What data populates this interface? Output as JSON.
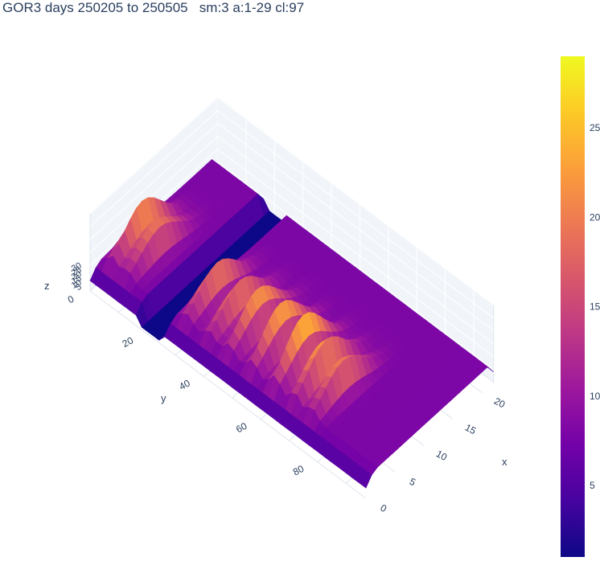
{
  "chart_data": {
    "type": "surface",
    "title": "GOR3 days 250205 to 250505   sm:3 a:1-29 cl:97",
    "colorscale": "plasma",
    "colorscale_stops": [
      "#0d0887",
      "#46039f",
      "#7201a8",
      "#9c179e",
      "#bd3786",
      "#d8576b",
      "#ed7953",
      "#fb9f3a",
      "#fdca26",
      "#f0f921"
    ],
    "xaxis": {
      "label": "x",
      "range": [
        0,
        22
      ],
      "ticks": [
        0,
        5,
        10,
        15,
        20
      ]
    },
    "yaxis": {
      "label": "y",
      "range": [
        0,
        97
      ],
      "ticks": [
        0,
        20,
        40,
        60,
        80
      ]
    },
    "zaxis": {
      "label": "z",
      "range": [
        0,
        30
      ],
      "ticks": [
        5,
        10,
        15,
        20,
        25,
        30
      ]
    },
    "colorbar": {
      "range": [
        1,
        29
      ],
      "ticks": [
        5,
        10,
        15,
        20,
        25
      ]
    },
    "grid": true,
    "ridges": [
      {
        "y": 4,
        "peak": 24
      },
      {
        "y": 9,
        "peak": 21
      },
      {
        "y": 30,
        "peak": 22
      },
      {
        "y": 38,
        "peak": 22
      },
      {
        "y": 45,
        "peak": 24
      },
      {
        "y": 53,
        "peak": 25
      },
      {
        "y": 61,
        "peak": 27
      },
      {
        "y": 68,
        "peak": 25
      },
      {
        "y": 74,
        "peak": 22
      }
    ],
    "trough": {
      "y_from": 18,
      "y_to": 25,
      "z": 1
    },
    "baseline_z": 8
  }
}
